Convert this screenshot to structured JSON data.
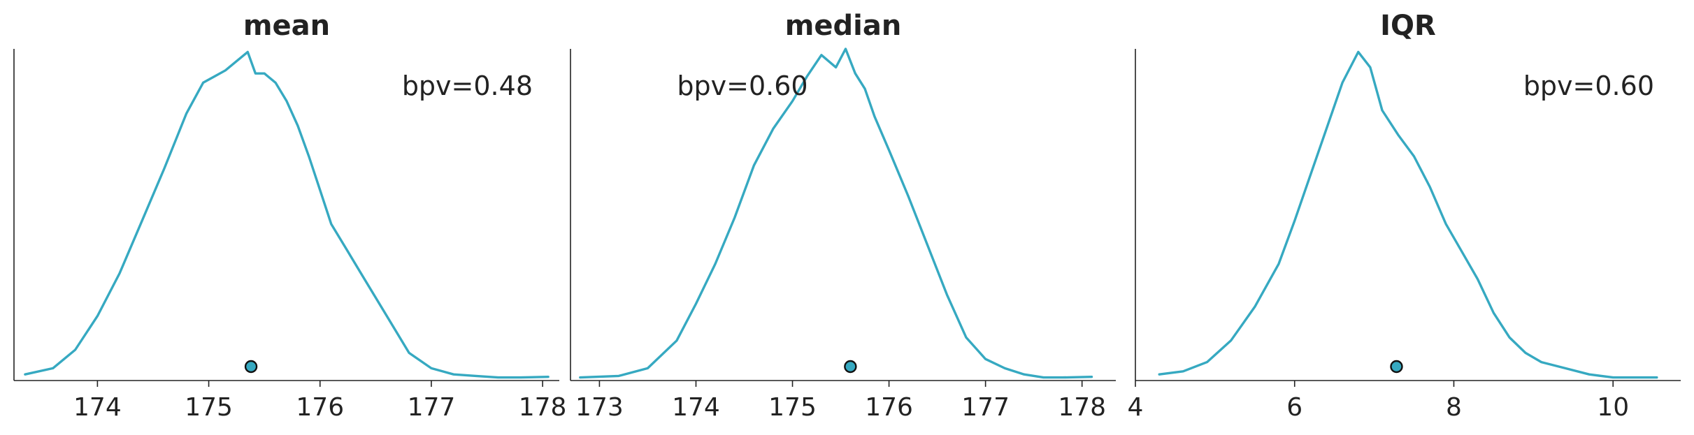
{
  "chart_data": [
    {
      "type": "line",
      "title": "mean",
      "annotation": "bpv=0.48",
      "annotation_anchor": "top-right",
      "xlim": [
        173.25,
        178.15
      ],
      "ylim": [
        0,
        1.08
      ],
      "xticks": [
        174,
        175,
        176,
        177,
        178
      ],
      "xtick_labels": [
        "174",
        "175",
        "176",
        "177",
        "178"
      ],
      "line_color": "#36a9c1",
      "marker_color": "#36a9c1",
      "marker_x": 175.38,
      "x": [
        173.35,
        173.6,
        173.8,
        174.0,
        174.2,
        174.4,
        174.6,
        174.8,
        174.95,
        175.05,
        175.15,
        175.25,
        175.35,
        175.42,
        175.5,
        175.6,
        175.7,
        175.8,
        175.9,
        176.0,
        176.1,
        176.25,
        176.4,
        176.6,
        176.8,
        177.0,
        177.2,
        177.4,
        177.6,
        177.8,
        178.05
      ],
      "y": [
        0.02,
        0.04,
        0.1,
        0.21,
        0.35,
        0.52,
        0.69,
        0.87,
        0.97,
        0.99,
        1.01,
        1.04,
        1.07,
        1.0,
        1.0,
        0.97,
        0.91,
        0.83,
        0.73,
        0.62,
        0.51,
        0.42,
        0.33,
        0.21,
        0.09,
        0.04,
        0.02,
        0.015,
        0.01,
        0.01,
        0.012
      ]
    },
    {
      "type": "line",
      "title": "median",
      "annotation": "bpv=0.60",
      "annotation_anchor": "top-center",
      "xlim": [
        172.7,
        178.35
      ],
      "ylim": [
        0,
        1.08
      ],
      "xticks": [
        173,
        174,
        175,
        176,
        177,
        178
      ],
      "xtick_labels": [
        "173",
        "174",
        "175",
        "176",
        "177",
        "178"
      ],
      "line_color": "#36a9c1",
      "marker_color": "#36a9c1",
      "marker_x": 175.6,
      "x": [
        172.8,
        173.2,
        173.5,
        173.8,
        174.0,
        174.2,
        174.4,
        174.6,
        174.8,
        175.0,
        175.15,
        175.3,
        175.45,
        175.55,
        175.65,
        175.75,
        175.85,
        176.0,
        176.2,
        176.4,
        176.6,
        176.8,
        177.0,
        177.2,
        177.4,
        177.6,
        177.8,
        178.1
      ],
      "y": [
        0.01,
        0.015,
        0.04,
        0.13,
        0.25,
        0.38,
        0.53,
        0.7,
        0.82,
        0.91,
        0.99,
        1.06,
        1.02,
        1.08,
        1.0,
        0.95,
        0.86,
        0.75,
        0.6,
        0.44,
        0.28,
        0.14,
        0.07,
        0.04,
        0.02,
        0.01,
        0.01,
        0.012
      ]
    },
    {
      "type": "line",
      "title": "IQR",
      "annotation": "bpv=0.60",
      "annotation_anchor": "top-right",
      "xlim": [
        4.0,
        10.85
      ],
      "ylim": [
        0,
        1.08
      ],
      "xticks": [
        4,
        6,
        8,
        10
      ],
      "xtick_labels": [
        "4",
        "6",
        "8",
        "10"
      ],
      "line_color": "#36a9c1",
      "marker_color": "#36a9c1",
      "marker_x": 7.28,
      "x": [
        4.3,
        4.6,
        4.9,
        5.2,
        5.5,
        5.8,
        6.0,
        6.2,
        6.4,
        6.6,
        6.8,
        6.95,
        7.1,
        7.3,
        7.5,
        7.7,
        7.9,
        8.1,
        8.3,
        8.5,
        8.7,
        8.9,
        9.1,
        9.4,
        9.7,
        10.0,
        10.3,
        10.55
      ],
      "y": [
        0.02,
        0.03,
        0.06,
        0.13,
        0.24,
        0.38,
        0.52,
        0.67,
        0.82,
        0.97,
        1.07,
        1.02,
        0.88,
        0.8,
        0.73,
        0.63,
        0.51,
        0.42,
        0.33,
        0.22,
        0.14,
        0.09,
        0.06,
        0.04,
        0.02,
        0.01,
        0.01,
        0.01
      ]
    }
  ]
}
